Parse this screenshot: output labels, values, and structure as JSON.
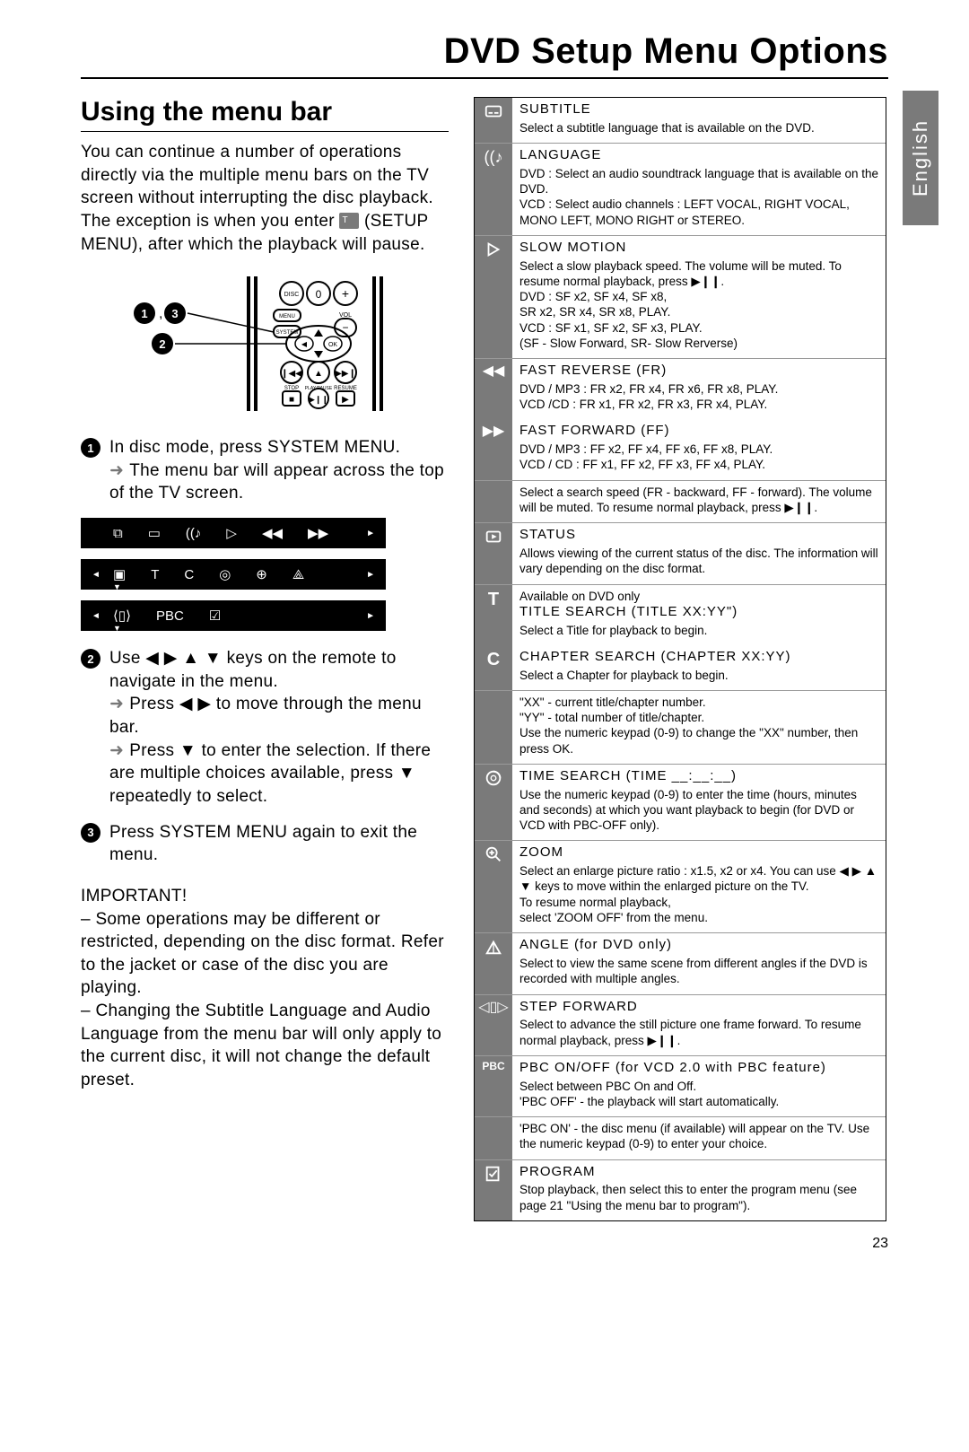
{
  "page_number": "23",
  "lang_tab": "English",
  "title": "DVD Setup Menu Options",
  "left": {
    "heading": "Using the menu bar",
    "intro1": "You can continue a number of operations directly via the multiple menu bars on the TV screen without interrupting the disc playback. The exception is when you enter",
    "intro2": "(SETUP MENU), after which the playback will pause.",
    "remote_labels": {
      "one_three": "1 , 3",
      "two": "2"
    },
    "step1_a": "In disc mode, press SYSTEM MENU.",
    "step1_b": "The menu bar will appear across the top of the TV screen.",
    "step2_a": "Use ◀ ▶ ▲ ▼ keys on the remote to navigate in the menu.",
    "step2_b": "Press ◀ ▶ to move through the menu bar.",
    "step2_c": "Press ▼ to enter the selection. If there are multiple choices available, press ▼ repeatedly to select.",
    "step3": "Press SYSTEM MENU again to exit the menu.",
    "important_label": "IMPORTANT!",
    "important_1": "– Some operations may be different or restricted, depending on the disc format. Refer to the jacket or case of the disc you are playing.",
    "important_2": "– Changing the Subtitle Language and Audio Language from the menu bar will only apply to the current disc, it will not change the default preset.",
    "menubar_row1": [
      "⧉",
      "▭",
      "((♪",
      "▷",
      "◀◀",
      "▶▶"
    ],
    "menubar_row2": [
      "▣",
      "T",
      "C",
      "◎",
      "⊕",
      "⟁"
    ],
    "menubar_row3": [
      "⟨▯⟩",
      "PBC",
      "☑"
    ]
  },
  "options": [
    {
      "icon": "subtitle",
      "label": "SUBTITLE",
      "desc": "Select a subtitle language that is available on the DVD."
    },
    {
      "icon": "language",
      "label": "LANGUAGE",
      "desc": "DVD : Select an audio soundtrack language that is available on the DVD.\nVCD : Select audio channels : LEFT VOCAL, RIGHT VOCAL, MONO LEFT, MONO RIGHT or STEREO."
    },
    {
      "icon": "slow",
      "label": "SLOW MOTION",
      "desc": "Select a slow playback speed. The volume will be muted.  To resume normal playback, press ▶❙❙.\nDVD : SF x2, SF x4, SF x8,\n          SR x2, SR x4, SR x8, PLAY.\nVCD : SF x1, SF x2, SF x3, PLAY.\n          (SF - Slow Forward, SR- Slow Rerverse)"
    },
    {
      "icon": "fr",
      "label": "FAST REVERSE (FR)",
      "desc": "DVD / MP3 : FR x2, FR x4, FR x6, FR x8, PLAY.\nVCD /CD : FR x1, FR x2, FR x3, FR x4, PLAY."
    },
    {
      "icon": "ff",
      "label": "FAST FORWARD (FF)",
      "desc": "DVD / MP3 : FF x2, FF x4, FF x6, FF x8, PLAY.\nVCD / CD : FF x1, FF x2, FF x3, FF x4, PLAY.",
      "noborder": true
    },
    {
      "icon": "",
      "label": "",
      "desc": "Select a search speed (FR - backward, FF - forward). The volume will be muted. To resume normal playback, press ▶❙❙."
    },
    {
      "icon": "status",
      "label": "STATUS",
      "desc": "Allows viewing of the current status of the disc. The information will vary depending on the disc format."
    },
    {
      "icon": "T",
      "label": "TITLE SEARCH (TITLE XX:YY\")",
      "pre": "Available on DVD only",
      "desc": "Select a Title for playback to begin."
    },
    {
      "icon": "C",
      "label": "CHAPTER SEARCH (CHAPTER XX:YY)",
      "desc": "Select a Chapter for playback to begin.",
      "noborder": true
    },
    {
      "icon": "",
      "label": "",
      "desc": "\"XX\" - current title/chapter number.\n\"YY\" - total number of title/chapter.\nUse the numeric keypad (0-9) to change the \"XX\" number, then press OK."
    },
    {
      "icon": "time",
      "label": "TIME SEARCH (TIME __:__:__)",
      "desc": "Use the numeric keypad (0-9) to enter the time (hours, minutes and seconds) at which you want playback to begin (for DVD or VCD with PBC-OFF only)."
    },
    {
      "icon": "zoom",
      "label": "ZOOM",
      "desc": "Select an enlarge picture ratio : x1.5, x2 or x4. You can use ◀ ▶ ▲ ▼ keys to move within the enlarged picture on the TV.\nTo resume normal playback,\nselect 'ZOOM OFF' from the menu."
    },
    {
      "icon": "angle",
      "label": "ANGLE (for DVD only)",
      "desc": "Select to view the same scene from different angles if the DVD is recorded with multiple angles."
    },
    {
      "icon": "step",
      "label": "STEP FORWARD",
      "desc": "Select to advance the still picture one frame forward. To resume normal playback, press ▶❙❙."
    },
    {
      "icon": "PBC",
      "label": "PBC ON/OFF (for VCD 2.0 with PBC feature)",
      "desc": "Select between PBC On and Off.\n'PBC OFF' - the playback will start automatically."
    },
    {
      "icon": "",
      "label": "",
      "desc": "'PBC ON' - the disc menu (if available) will appear on the TV. Use the numeric keypad (0-9) to enter your choice."
    },
    {
      "icon": "program",
      "label": "PROGRAM",
      "desc": "Stop playback, then select this to enter the program menu (see page 21 \"Using the menu bar to program\")."
    }
  ],
  "colors": {
    "gray": "#7a7a7a",
    "black": "#000000",
    "white": "#ffffff"
  }
}
